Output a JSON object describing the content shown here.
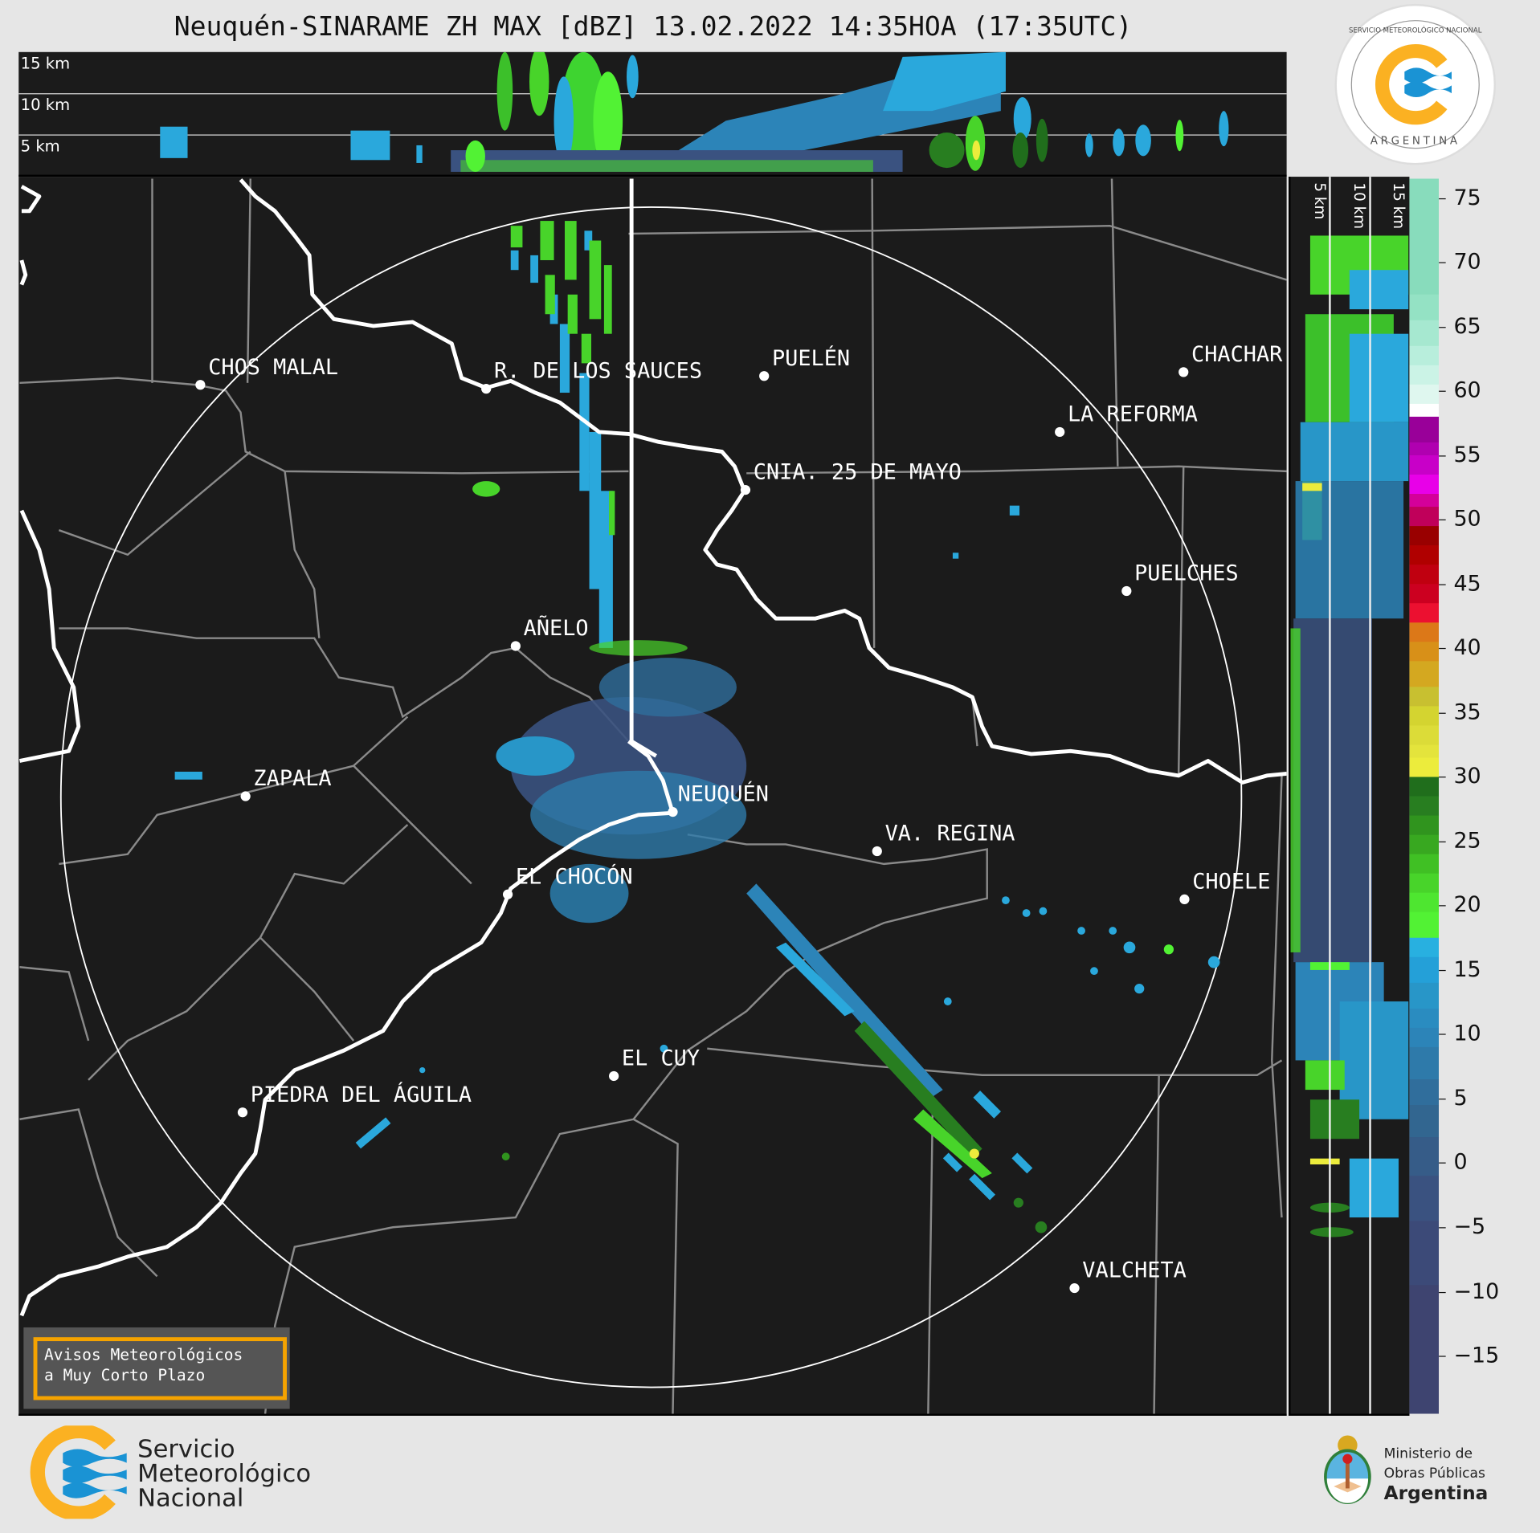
{
  "title": "Neuquén-SINARAME ZH MAX [dBZ] 13.02.2022 14:35HOA (17:35UTC)",
  "top_section": {
    "labels": [
      "15 km",
      "10 km",
      "5 km"
    ]
  },
  "side_section": {
    "labels": [
      "5 km",
      "10 km",
      "15 km"
    ]
  },
  "map": {
    "cities": [
      {
        "label": "CHOS MALAL"
      },
      {
        "label": "R. DE LOS SAUCES"
      },
      {
        "label": "PUELÉN"
      },
      {
        "label": "CHACHAR"
      },
      {
        "label": "LA REFORMA"
      },
      {
        "label": "CNIA. 25 DE MAYO"
      },
      {
        "label": "PUELCHES"
      },
      {
        "label": "AÑELO"
      },
      {
        "label": "ZAPALA"
      },
      {
        "label": "NEUQUÉN"
      },
      {
        "label": "VA. REGINA"
      },
      {
        "label": "EL CHOCÓN"
      },
      {
        "label": "CHOELE"
      },
      {
        "label": "EL CUY"
      },
      {
        "label": "PIEDRA DEL ÁGUILA"
      },
      {
        "label": "VALCHETA"
      }
    ]
  },
  "colorbar": {
    "range": [
      -19.5,
      76.5
    ],
    "ticks": [
      75,
      70,
      65,
      60,
      55,
      50,
      45,
      40,
      35,
      30,
      25,
      20,
      15,
      10,
      5,
      0,
      -5,
      -10,
      -15
    ],
    "tick_labels": [
      "75",
      "70",
      "65",
      "60",
      "55",
      "50",
      "45",
      "40",
      "35",
      "30",
      "25",
      "20",
      "15",
      "10",
      "5",
      "0",
      "−5",
      "−10",
      "−15"
    ],
    "bands": [
      [
        "#88dcbc",
        67.5
      ],
      [
        "#94e2c4",
        65.5
      ],
      [
        "#a6e8d0",
        63.5
      ],
      [
        "#b8eedc",
        62
      ],
      [
        "#cbf3e6",
        60.5
      ],
      [
        "#dff7ef",
        59
      ],
      [
        "#ffffff",
        58
      ],
      [
        "#990099",
        56
      ],
      [
        "#b000b0",
        55
      ],
      [
        "#c800c8",
        53.5
      ],
      [
        "#e800e8",
        52
      ],
      [
        "#d4009a",
        51
      ],
      [
        "#c0005a",
        49.5
      ],
      [
        "#990000",
        48
      ],
      [
        "#b00000",
        46.5
      ],
      [
        "#c00010",
        45
      ],
      [
        "#cc0020",
        43.5
      ],
      [
        "#ec1030",
        42
      ],
      [
        "#dc7818",
        40.5
      ],
      [
        "#d89018",
        39
      ],
      [
        "#d4a820",
        37
      ],
      [
        "#c8c030",
        35.5
      ],
      [
        "#d4d430",
        34
      ],
      [
        "#dcdc38",
        32.5
      ],
      [
        "#e4e43c",
        31.5
      ],
      [
        "#ecec3c",
        30
      ],
      [
        "#206e1c",
        28.5
      ],
      [
        "#287e20",
        27
      ],
      [
        "#30941e",
        25.5
      ],
      [
        "#38a820",
        24
      ],
      [
        "#40c024",
        22.5
      ],
      [
        "#48d42a",
        21
      ],
      [
        "#4ee630",
        19.5
      ],
      [
        "#52f234",
        17.5
      ],
      [
        "#28b0e0",
        16
      ],
      [
        "#24a0d8",
        14
      ],
      [
        "#2896c8",
        12
      ],
      [
        "#2a8cc0",
        10.5
      ],
      [
        "#2c84b8",
        9
      ],
      [
        "#2e7aaa",
        6.5
      ],
      [
        "#306e9c",
        4.5
      ],
      [
        "#326690",
        2
      ],
      [
        "#365c88",
        -1
      ],
      [
        "#3a5280",
        -4.5
      ],
      [
        "#3c4a78",
        -9.5
      ],
      [
        "#3e4470",
        -19.5
      ]
    ]
  },
  "avisos_button": {
    "line1": "Avisos Meteorológicos",
    "line2": "a Muy Corto Plazo"
  },
  "footer": {
    "smn": [
      "Servicio",
      "Meteorológico",
      "Nacional"
    ],
    "ministerio": [
      "Ministerio de",
      "Obras Públicas",
      "Argentina"
    ]
  },
  "seal": {
    "text": "SERVICIO METEOROLÓGICO NACIONAL",
    "country": "ARGENTINA"
  },
  "colors": {
    "smn_orange": "#fbb122",
    "smn_blue": "#1a93d4",
    "avisos_border": "#f5a300"
  }
}
